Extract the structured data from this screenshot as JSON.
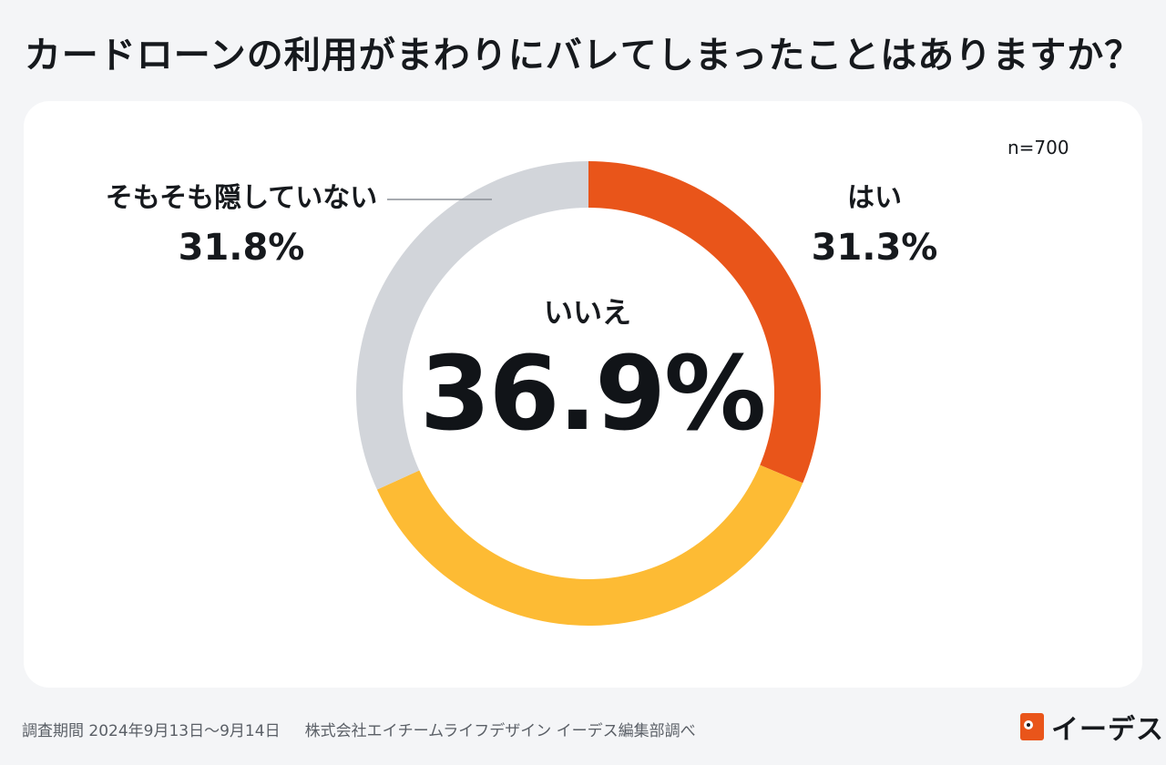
{
  "title": "カードローンの利用がまわりにバレてしまったことはありますか？",
  "n_label": "n=700",
  "chart_data": {
    "type": "pie",
    "title": "カードローンの利用がまわりにバレてしまったことはありますか？",
    "donut": true,
    "slices": [
      {
        "label": "はい",
        "value": 31.3,
        "value_label": "31.3%",
        "color": "#e9551a"
      },
      {
        "label": "いいえ",
        "value": 36.9,
        "value_label": "36.9%",
        "color": "#fdbb34"
      },
      {
        "label": "そもそも隠していない",
        "value": 31.8,
        "value_label": "31.8%",
        "color": "#d2d5da"
      }
    ],
    "n": 700
  },
  "footer": {
    "period": "調査期間 2024年9月13日〜9月14日",
    "source": "株式会社エイチームライフデザイン イーデス編集部調べ"
  },
  "logo": {
    "text": "イーデス"
  }
}
